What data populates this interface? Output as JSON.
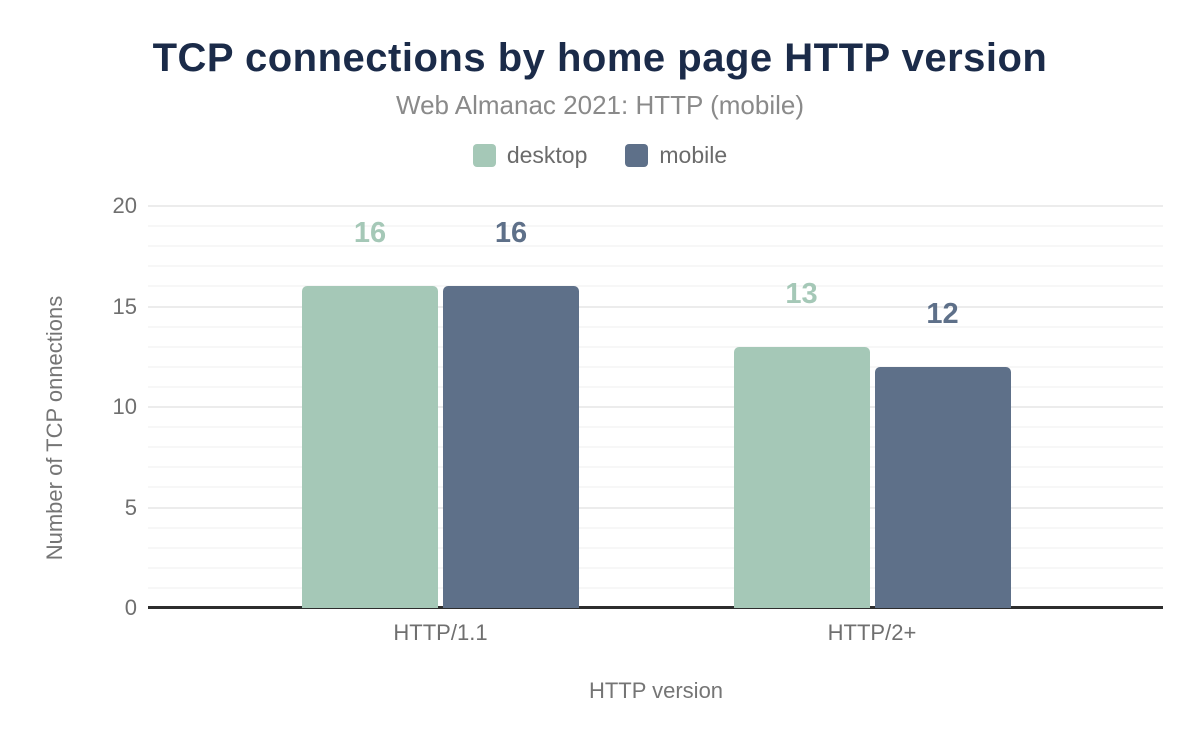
{
  "chart_data": {
    "type": "bar",
    "title": "TCP connections by home page HTTP version",
    "subtitle": "Web Almanac 2021: HTTP (mobile)",
    "categories": [
      "HTTP/1.1",
      "HTTP/2+"
    ],
    "series": [
      {
        "name": "desktop",
        "color": "#a5c8b7",
        "values": [
          16,
          13
        ]
      },
      {
        "name": "mobile",
        "color": "#5e7089",
        "values": [
          16,
          12
        ]
      }
    ],
    "xlabel": "HTTP version",
    "ylabel": "Number of TCP onnections",
    "ylim": [
      0,
      20
    ],
    "yticks": [
      0,
      5,
      10,
      15,
      20
    ],
    "grid": "horizontal, minor every 1 unit, major every 5 units",
    "legend_position": "top-center",
    "colors": {
      "title": "#1b2b49",
      "subtitle": "#8a8a8a",
      "axis_text": "#6f6f6f",
      "axis_line": "#2d2d2d",
      "grid_major": "#ececec",
      "grid_minor": "#f7f7f7",
      "background": "#ffffff"
    }
  }
}
